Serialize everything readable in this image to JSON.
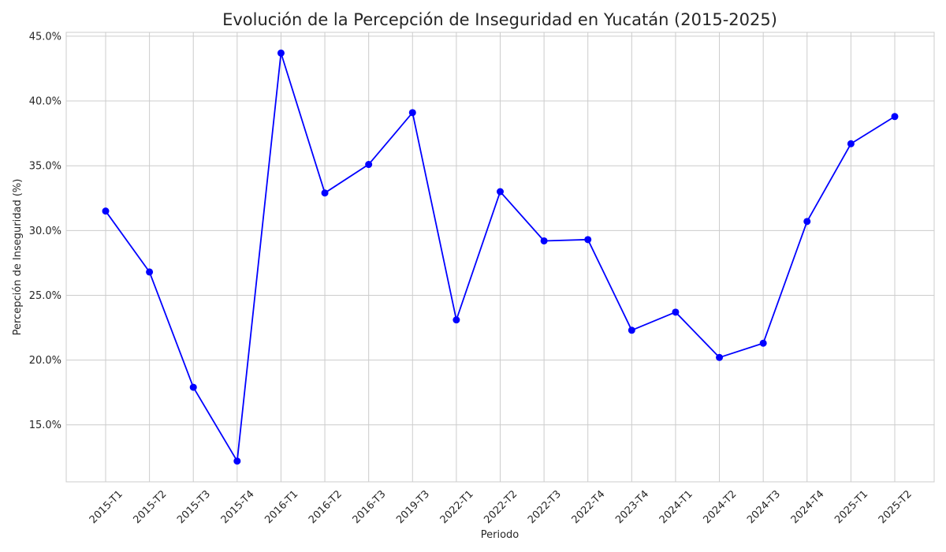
{
  "chart_data": {
    "type": "line",
    "title": "Evolución de la Percepción de Inseguridad en Yucatán (2015-2025)",
    "xlabel": "Periodo",
    "ylabel": "Percepción de Inseguridad (%)",
    "categories": [
      "2015-T1",
      "2015-T2",
      "2015-T3",
      "2015-T4",
      "2016-T1",
      "2016-T2",
      "2016-T3",
      "2019-T3",
      "2022-T1",
      "2022-T2",
      "2022-T3",
      "2022-T4",
      "2023-T4",
      "2024-T1",
      "2024-T2",
      "2024-T3",
      "2024-T4",
      "2025-T1",
      "2025-T2"
    ],
    "series": [
      {
        "values": [
          31.5,
          26.8,
          17.9,
          12.2,
          43.7,
          32.9,
          35.1,
          39.1,
          23.1,
          33.0,
          29.2,
          29.3,
          22.3,
          23.7,
          20.2,
          21.3,
          30.7,
          36.7,
          38.8
        ],
        "color": "#0000ff"
      }
    ],
    "yticks": [
      "15.0%",
      "20.0%",
      "25.0%",
      "30.0%",
      "35.0%",
      "40.0%",
      "45.0%"
    ],
    "ytick_values": [
      15,
      20,
      25,
      30,
      35,
      40,
      45
    ],
    "ylim": [
      10.6,
      45.3
    ],
    "grid": true,
    "legend": "none",
    "colors": {
      "line": "#0000ff",
      "grid": "#cccccc",
      "text": "#262626"
    }
  }
}
